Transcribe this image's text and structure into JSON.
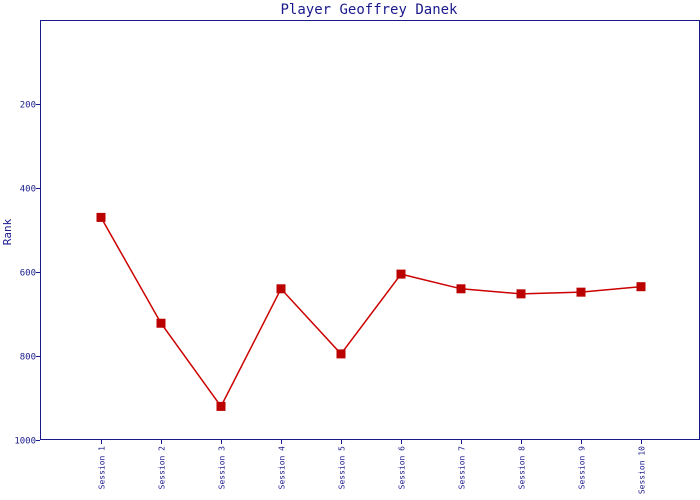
{
  "chart_data": {
    "type": "line",
    "title": "Player Geoffrey Danek",
    "xlabel": "",
    "ylabel": "Rank",
    "categories": [
      "Session 1",
      "Session 2",
      "Session 3",
      "Session 4",
      "Session 5",
      "Session 6",
      "Session 7",
      "Session 8",
      "Session 9",
      "Session 10"
    ],
    "series": [
      {
        "values": [
          470,
          722,
          920,
          640,
          795,
          605,
          640,
          652,
          648,
          635
        ]
      }
    ],
    "ylim": [
      1000,
      0
    ],
    "y_inverted": true,
    "yticks": [
      200,
      400,
      600,
      800,
      1000
    ],
    "grid": false,
    "colors": {
      "series": "#cc0000",
      "marker": "#bb0000",
      "axis": "#1a1a8c",
      "text": "#1a1a8c"
    },
    "marker": "square"
  }
}
